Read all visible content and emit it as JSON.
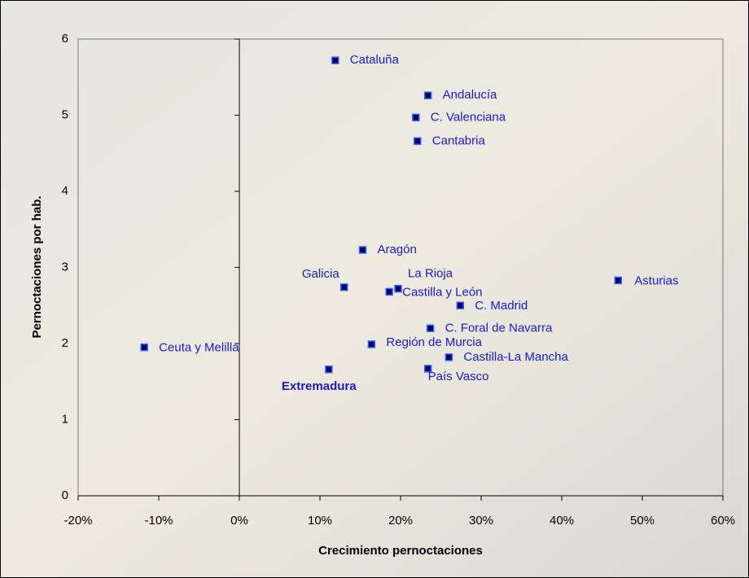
{
  "chart_data": {
    "type": "scatter",
    "xlabel": "Crecimiento pernoctaciones",
    "ylabel": "Pernoctaciones por hab.",
    "labels": [
      "Cataluña",
      "Andalucía",
      "C. Valenciana",
      "Cantabria",
      "Aragón",
      "Galicia",
      "La Rioja",
      "Castilla y León",
      "C. Madrid",
      "Asturias",
      "C. Foral de Navarra",
      "Región de Murcia",
      "Castilla-La Mancha",
      "País Vasco",
      "Extremadura",
      "Ceuta y Melilla"
    ],
    "x": [
      11.9,
      23.4,
      21.9,
      22.1,
      15.3,
      13.0,
      19.7,
      18.6,
      27.4,
      47.0,
      23.7,
      16.4,
      26.0,
      23.4,
      11.1,
      -11.8
    ],
    "values": [
      5.72,
      5.26,
      4.97,
      4.66,
      3.23,
      2.74,
      2.72,
      2.68,
      2.5,
      2.83,
      2.2,
      1.99,
      1.82,
      1.67,
      1.66,
      1.95
    ],
    "color": "#000066",
    "xlim": [
      -20,
      60
    ],
    "xticks": [
      {
        "value": -20,
        "label": "-20%"
      },
      {
        "value": -10,
        "label": "-10%"
      },
      {
        "value": 0,
        "label": "0%"
      },
      {
        "value": 10,
        "label": "10%"
      },
      {
        "value": 20,
        "label": "20%"
      },
      {
        "value": 30,
        "label": "30%"
      },
      {
        "value": 40,
        "label": "40%"
      },
      {
        "value": 50,
        "label": "50%"
      },
      {
        "value": 60,
        "label": "60%"
      }
    ],
    "ylim": [
      0,
      6
    ],
    "yticks": [
      0,
      1,
      2,
      3,
      4,
      5,
      6
    ],
    "grid": false
  }
}
